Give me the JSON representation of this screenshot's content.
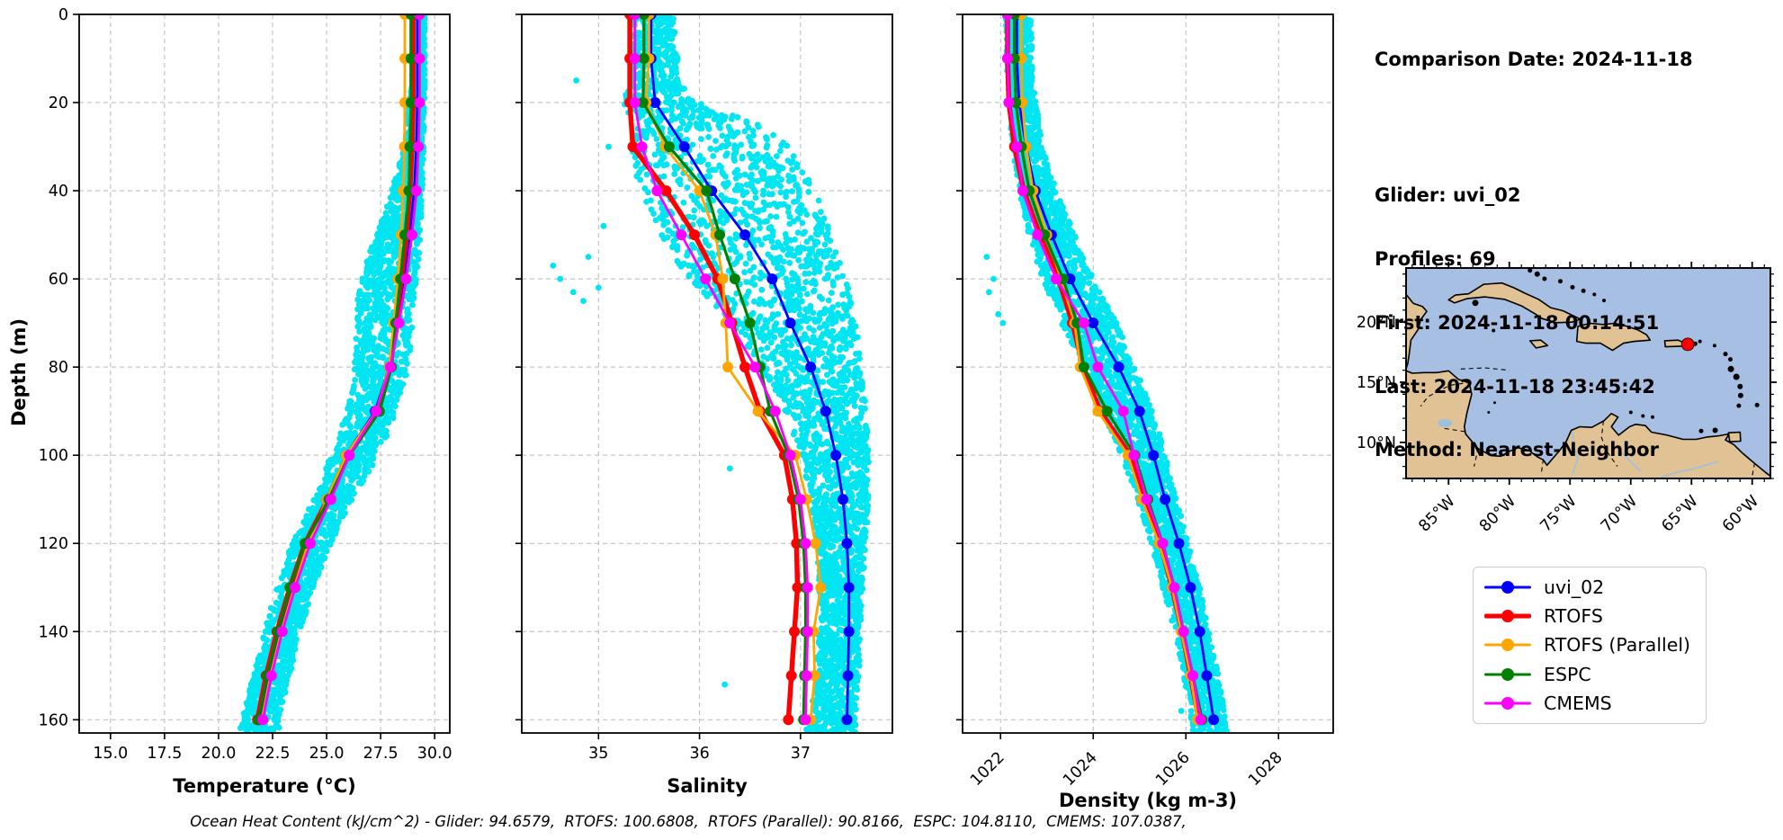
{
  "info_panel": {
    "comparison_date": "Comparison Date: 2024-11-18",
    "glider": "Glider: uvi_02",
    "profiles": "Profiles: 69",
    "first": "First: 2024-11-18 00:14:51",
    "last": "Last: 2024-11-18 23:45:42",
    "method": "Method: Nearest-Neighbor"
  },
  "caption": "Ocean Heat Content (kJ/cm^2) - Glider: 94.6579,  RTOFS: 100.6808,  RTOFS (Parallel): 90.8166,  ESPC: 104.8110,  CMEMS: 107.0387,",
  "legend": {
    "entries": [
      {
        "label": "uvi_02",
        "color": "#0000ff",
        "lw": 3
      },
      {
        "label": "RTOFS",
        "color": "#ff0000",
        "lw": 5
      },
      {
        "label": "RTOFS (Parallel)",
        "color": "#ffa500",
        "lw": 3
      },
      {
        "label": "ESPC",
        "color": "#008000",
        "lw": 3
      },
      {
        "label": "CMEMS",
        "color": "#ff00ff",
        "lw": 3
      }
    ]
  },
  "colors": {
    "glider_scatter": "#00e5f2",
    "uvi_02": "#0000ff",
    "rtofs": "#ff0000",
    "rtofs_parallel": "#ffa500",
    "espc": "#008000",
    "cmems": "#ff00ff",
    "map_ocean": "#a6bfe2",
    "map_land": "#e0c295",
    "location_marker": "#ff0000"
  },
  "chart_data": [
    {
      "type": "line",
      "title": "",
      "xlabel": "Temperature (°C)",
      "ylabel": "Depth (m)",
      "xlim": [
        13.55,
        30.7
      ],
      "ylim": [
        0,
        163
      ],
      "y_inverted": true,
      "grid": true,
      "xticks": [
        15.0,
        17.5,
        20.0,
        22.5,
        25.0,
        27.5,
        30.0
      ],
      "xtick_labels": [
        "15.0",
        "17.5",
        "20.0",
        "22.5",
        "25.0",
        "27.5",
        "30.0"
      ],
      "xticks_rotated": false,
      "yticks": [
        0,
        20,
        40,
        60,
        80,
        100,
        120,
        140,
        160
      ],
      "depths": [
        0,
        10,
        20,
        30,
        40,
        50,
        60,
        70,
        80,
        90,
        100,
        110,
        120,
        130,
        140,
        150,
        160
      ],
      "series": [
        {
          "name": "uvi_02",
          "color": "#0000ff",
          "lw": 2.8,
          "values": [
            29.2,
            29.2,
            29.2,
            29.15,
            29.05,
            28.85,
            28.6,
            28.3,
            27.9,
            27.25,
            25.9,
            25.0,
            24.1,
            23.4,
            22.8,
            22.3,
            21.9
          ]
        },
        {
          "name": "RTOFS",
          "color": "#ff0000",
          "lw": 5.5,
          "values": [
            29.0,
            29.0,
            29.0,
            28.95,
            28.85,
            28.7,
            28.45,
            28.2,
            27.95,
            27.4,
            26.0,
            25.05,
            24.0,
            23.3,
            22.7,
            22.2,
            21.8
          ]
        },
        {
          "name": "RTOFS (Parallel)",
          "color": "#ffa500",
          "lw": 2.8,
          "values": [
            28.62,
            28.62,
            28.62,
            28.6,
            28.55,
            28.45,
            28.3,
            28.1,
            27.9,
            27.3,
            25.9,
            25.0,
            24.15,
            23.5,
            22.9,
            22.4,
            22.0
          ]
        },
        {
          "name": "ESPC",
          "color": "#008000",
          "lw": 3.2,
          "values": [
            28.9,
            28.9,
            28.9,
            28.85,
            28.8,
            28.62,
            28.42,
            28.2,
            28.0,
            27.45,
            26.05,
            25.1,
            24.0,
            23.3,
            22.75,
            22.25,
            21.85
          ]
        },
        {
          "name": "CMEMS",
          "color": "#ff00ff",
          "lw": 2.8,
          "values": [
            29.3,
            29.3,
            29.3,
            29.25,
            29.15,
            28.95,
            28.68,
            28.35,
            27.95,
            27.3,
            26.05,
            25.2,
            24.25,
            23.55,
            22.95,
            22.45,
            22.05
          ]
        }
      ],
      "scatter": {
        "name": "glider observations",
        "color": "#00e5f2",
        "n": 2800,
        "envelope": {
          "depths": [
            0,
            15,
            30,
            45,
            55,
            65,
            75,
            85,
            95,
            100,
            110,
            120,
            130,
            140,
            150,
            162
          ],
          "min": [
            29.05,
            28.95,
            28.6,
            27.7,
            26.9,
            26.4,
            26.3,
            26.2,
            25.6,
            25.2,
            24.4,
            23.4,
            22.7,
            22.1,
            21.6,
            21.0
          ],
          "max": [
            29.55,
            29.55,
            29.5,
            29.4,
            29.3,
            29.1,
            28.9,
            28.6,
            27.9,
            27.4,
            26.2,
            25.2,
            24.4,
            23.8,
            23.3,
            22.8
          ]
        },
        "outliers": []
      }
    },
    {
      "type": "line",
      "title": "",
      "xlabel": "Salinity",
      "ylabel": "Depth (m)",
      "xlim": [
        34.24,
        37.91
      ],
      "ylim": [
        0,
        163
      ],
      "y_inverted": true,
      "grid": true,
      "xticks": [
        35,
        36,
        37
      ],
      "xtick_labels": [
        "35",
        "36",
        "37"
      ],
      "xticks_rotated": false,
      "yticks": [
        0,
        20,
        40,
        60,
        80,
        100,
        120,
        140,
        160
      ],
      "depths": [
        0,
        10,
        20,
        30,
        40,
        50,
        60,
        70,
        80,
        90,
        100,
        110,
        120,
        130,
        140,
        150,
        160
      ],
      "series": [
        {
          "name": "uvi_02",
          "color": "#0000ff",
          "lw": 2.8,
          "values": [
            35.52,
            35.52,
            35.56,
            35.85,
            36.12,
            36.45,
            36.72,
            36.9,
            37.1,
            37.25,
            37.35,
            37.42,
            37.46,
            37.48,
            37.48,
            37.47,
            37.46
          ]
        },
        {
          "name": "RTOFS",
          "color": "#ff0000",
          "lw": 5.5,
          "values": [
            35.31,
            35.31,
            35.31,
            35.34,
            35.67,
            35.95,
            36.18,
            36.32,
            36.45,
            36.6,
            36.84,
            36.92,
            36.96,
            36.97,
            36.94,
            36.91,
            36.88
          ]
        },
        {
          "name": "RTOFS (Parallel)",
          "color": "#ffa500",
          "lw": 2.8,
          "values": [
            35.5,
            35.5,
            35.47,
            35.66,
            36.0,
            36.16,
            36.23,
            36.26,
            36.28,
            36.58,
            36.95,
            37.06,
            37.15,
            37.2,
            37.13,
            37.14,
            37.1
          ]
        },
        {
          "name": "ESPC",
          "color": "#008000",
          "lw": 3.2,
          "values": [
            35.45,
            35.45,
            35.44,
            35.7,
            36.07,
            36.2,
            36.35,
            36.5,
            36.6,
            36.7,
            36.88,
            36.98,
            37.03,
            37.05,
            37.05,
            37.04,
            37.03
          ]
        },
        {
          "name": "CMEMS",
          "color": "#ff00ff",
          "lw": 2.8,
          "values": [
            35.36,
            35.36,
            35.36,
            35.43,
            35.58,
            35.82,
            36.06,
            36.3,
            36.55,
            36.75,
            36.9,
            37.0,
            37.05,
            37.07,
            37.07,
            37.06,
            37.05
          ]
        }
      ],
      "scatter": {
        "name": "glider observations",
        "color": "#00e5f2",
        "n": 3200,
        "envelope": {
          "depths": [
            0,
            15,
            20,
            25,
            30,
            40,
            50,
            60,
            70,
            80,
            90,
            100,
            110,
            120,
            135,
            150,
            162
          ],
          "min": [
            35.35,
            35.3,
            35.25,
            35.3,
            35.3,
            35.4,
            35.6,
            35.9,
            36.3,
            36.6,
            36.85,
            37.0,
            37.1,
            37.15,
            37.2,
            37.15,
            37.05
          ],
          "max": [
            35.75,
            35.8,
            36.0,
            36.6,
            36.9,
            37.15,
            37.3,
            37.45,
            37.55,
            37.6,
            37.65,
            37.68,
            37.68,
            37.65,
            37.6,
            37.58,
            37.55
          ]
        },
        "outliers": [
          [
            34.55,
            57
          ],
          [
            34.62,
            60
          ],
          [
            34.75,
            63
          ],
          [
            34.85,
            65
          ],
          [
            35.0,
            62
          ],
          [
            34.9,
            55
          ],
          [
            35.05,
            48
          ],
          [
            34.78,
            15
          ],
          [
            35.1,
            30
          ],
          [
            36.3,
            103
          ],
          [
            36.25,
            152
          ]
        ]
      }
    },
    {
      "type": "line",
      "title": "",
      "xlabel": "Density (kg m-3)",
      "ylabel": "Depth (m)",
      "xlim": [
        1021.18,
        1029.18
      ],
      "ylim": [
        0,
        163
      ],
      "y_inverted": true,
      "grid": true,
      "xticks": [
        1022,
        1024,
        1026,
        1028
      ],
      "xtick_labels": [
        "1022",
        "1024",
        "1026",
        "1028"
      ],
      "xticks_rotated": true,
      "yticks": [
        0,
        20,
        40,
        60,
        80,
        100,
        120,
        140,
        160
      ],
      "depths": [
        0,
        10,
        20,
        30,
        40,
        50,
        60,
        70,
        80,
        90,
        100,
        110,
        120,
        130,
        140,
        150,
        160
      ],
      "series": [
        {
          "name": "uvi_02",
          "color": "#0000ff",
          "lw": 2.8,
          "values": [
            1022.35,
            1022.35,
            1022.4,
            1022.55,
            1022.75,
            1023.1,
            1023.5,
            1024.0,
            1024.55,
            1025.0,
            1025.3,
            1025.55,
            1025.85,
            1026.1,
            1026.3,
            1026.45,
            1026.6
          ]
        },
        {
          "name": "RTOFS",
          "color": "#ff0000",
          "lw": 5.5,
          "values": [
            1022.15,
            1022.15,
            1022.18,
            1022.3,
            1022.5,
            1022.85,
            1023.25,
            1023.55,
            1023.78,
            1024.15,
            1024.8,
            1025.1,
            1025.45,
            1025.7,
            1025.92,
            1026.1,
            1026.28
          ]
        },
        {
          "name": "RTOFS (Parallel)",
          "color": "#ffa500",
          "lw": 2.8,
          "values": [
            1022.45,
            1022.45,
            1022.47,
            1022.55,
            1022.7,
            1023.0,
            1023.3,
            1023.6,
            1023.72,
            1024.1,
            1024.75,
            1025.05,
            1025.42,
            1025.7,
            1025.9,
            1026.1,
            1026.25
          ]
        },
        {
          "name": "ESPC",
          "color": "#008000",
          "lw": 3.2,
          "values": [
            1022.3,
            1022.3,
            1022.33,
            1022.45,
            1022.62,
            1022.95,
            1023.35,
            1023.65,
            1023.8,
            1024.3,
            1024.9,
            1025.18,
            1025.5,
            1025.75,
            1025.95,
            1026.15,
            1026.35
          ]
        },
        {
          "name": "CMEMS",
          "color": "#ff00ff",
          "lw": 2.8,
          "values": [
            1022.15,
            1022.15,
            1022.18,
            1022.35,
            1022.48,
            1022.8,
            1023.2,
            1023.8,
            1024.1,
            1024.65,
            1024.88,
            1025.15,
            1025.5,
            1025.75,
            1025.95,
            1026.15,
            1026.32
          ]
        }
      ],
      "scatter": {
        "name": "glider observations",
        "color": "#00e5f2",
        "n": 3000,
        "envelope": {
          "depths": [
            0,
            15,
            30,
            40,
            50,
            60,
            70,
            80,
            90,
            100,
            110,
            120,
            130,
            140,
            150,
            162
          ],
          "min": [
            1022.1,
            1022.15,
            1022.25,
            1022.4,
            1022.6,
            1022.9,
            1023.3,
            1023.8,
            1024.2,
            1024.6,
            1024.95,
            1025.25,
            1025.5,
            1025.75,
            1025.95,
            1026.15
          ],
          "max": [
            1022.65,
            1022.7,
            1022.9,
            1023.2,
            1023.6,
            1024.0,
            1024.5,
            1024.9,
            1025.3,
            1025.55,
            1025.8,
            1026.05,
            1026.3,
            1026.5,
            1026.7,
            1026.9
          ]
        },
        "outliers": [
          [
            1021.7,
            55
          ],
          [
            1021.85,
            60
          ],
          [
            1021.75,
            63
          ],
          [
            1021.95,
            68
          ],
          [
            1022.05,
            70
          ],
          [
            1025.6,
            120
          ],
          [
            1025.9,
            158
          ]
        ]
      }
    },
    {
      "type": "map",
      "region": "Caribbean Sea",
      "lon_range": [
        -88.5,
        -58.5
      ],
      "lat_range": [
        7,
        24.5
      ],
      "lon_ticks": [
        -85,
        -80,
        -75,
        -70,
        -65,
        -60
      ],
      "lon_labels": [
        "85°W",
        "80°W",
        "75°W",
        "70°W",
        "65°W",
        "60°W"
      ],
      "lat_ticks": [
        10,
        15,
        20
      ],
      "lat_labels": [
        "10°N",
        "15°N",
        "20°N"
      ],
      "glider_marker": {
        "lon": -65.3,
        "lat": 18.15,
        "color": "#ff0000"
      },
      "ocean_color": "#a6bfe2",
      "land_color": "#e0c295"
    }
  ]
}
